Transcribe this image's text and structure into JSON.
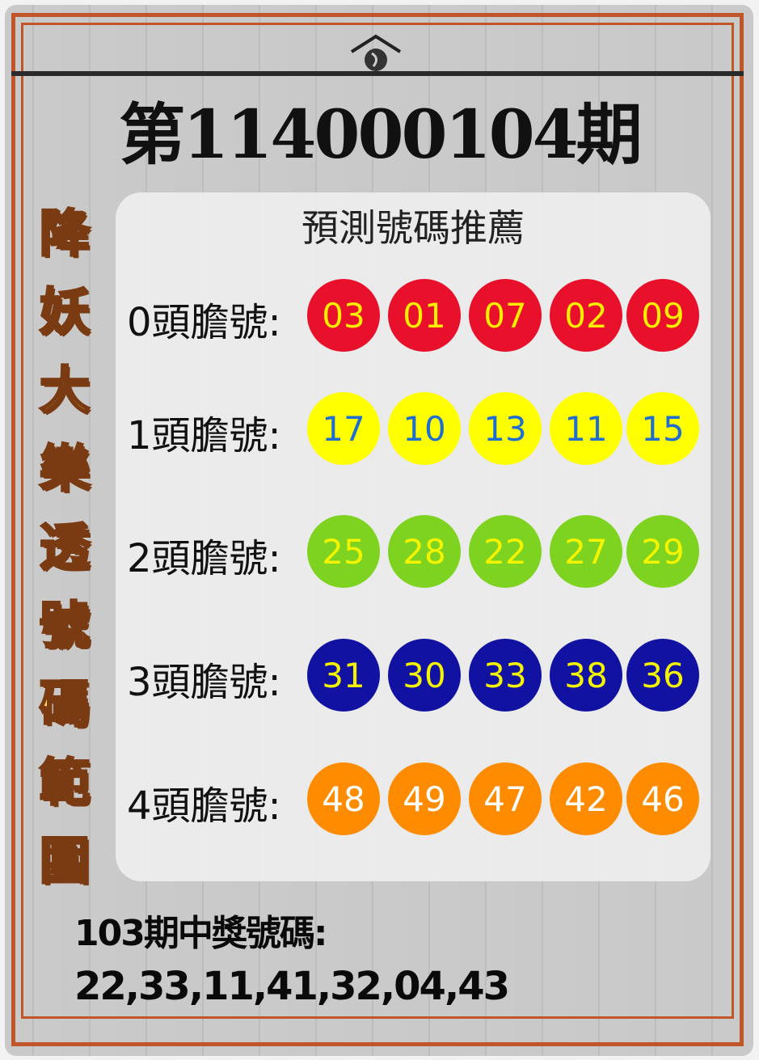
{
  "header": {
    "title": "第114000104期"
  },
  "side_banner": [
    "降",
    "妖",
    "大",
    "樂",
    "透",
    "號",
    "碼",
    "範",
    "圍"
  ],
  "panel": {
    "title": "預測號碼推薦",
    "rows": [
      {
        "label": "0頭膽號:",
        "numbers": [
          "03",
          "01",
          "07",
          "02",
          "09"
        ],
        "ball_color": "#e8102a",
        "text_color": "#ffee00"
      },
      {
        "label": "1頭膽號:",
        "numbers": [
          "17",
          "10",
          "13",
          "11",
          "15"
        ],
        "ball_color": "#ffff00",
        "text_color": "#1f6fd0"
      },
      {
        "label": "2頭膽號:",
        "numbers": [
          "25",
          "28",
          "22",
          "27",
          "29"
        ],
        "ball_color": "#7ed321",
        "text_color": "#f4f400"
      },
      {
        "label": "3頭膽號:",
        "numbers": [
          "31",
          "30",
          "33",
          "38",
          "36"
        ],
        "ball_color": "#1212a2",
        "text_color": "#f4f400"
      },
      {
        "label": "4頭膽號:",
        "numbers": [
          "48",
          "49",
          "47",
          "42",
          "46"
        ],
        "ball_color": "#ff8c00",
        "text_color": "#ffffff"
      }
    ]
  },
  "previous": {
    "label": "103期中獎號碼:",
    "numbers": "22,33,11,41,32,04,43"
  },
  "colors": {
    "frame": "#c2562b",
    "banner_text": "#ffd75a"
  }
}
